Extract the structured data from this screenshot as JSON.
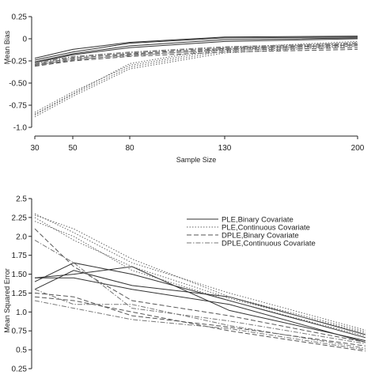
{
  "chart_data": [
    {
      "type": "line",
      "title": "",
      "xlabel": "Sample Size",
      "ylabel": "Mean Bias",
      "x": [
        30,
        50,
        80,
        130,
        200
      ],
      "x_tick_labels": [
        "30",
        "50",
        "80",
        "130",
        "200"
      ],
      "xlim": [
        30,
        200
      ],
      "ylim": [
        -1.0,
        0.25
      ],
      "y_ticks": [
        0.25,
        0.0,
        -0.25,
        -0.5,
        -0.75,
        -1.0
      ],
      "y_tick_labels": [
        "0.25",
        "0",
        "-0.25",
        "-0.50",
        "-0.75",
        "-1.0"
      ],
      "grid": false,
      "series": [
        {
          "style": "solid",
          "values": [
            -0.22,
            -0.12,
            -0.04,
            0.02,
            0.03
          ]
        },
        {
          "style": "solid",
          "values": [
            -0.24,
            -0.15,
            -0.05,
            0.01,
            0.02
          ]
        },
        {
          "style": "solid",
          "values": [
            -0.26,
            -0.17,
            -0.08,
            -0.01,
            0.01
          ]
        },
        {
          "style": "solid",
          "values": [
            -0.27,
            -0.18,
            -0.1,
            -0.03,
            0.0
          ]
        },
        {
          "style": "dotted",
          "values": [
            -0.83,
            -0.6,
            -0.3,
            -0.12,
            -0.04
          ]
        },
        {
          "style": "dotted",
          "values": [
            -0.86,
            -0.63,
            -0.32,
            -0.14,
            -0.06
          ]
        },
        {
          "style": "dotted",
          "values": [
            -0.88,
            -0.65,
            -0.34,
            -0.16,
            -0.08
          ]
        },
        {
          "style": "dotted",
          "values": [
            -0.85,
            -0.62,
            -0.28,
            -0.1,
            -0.03
          ]
        },
        {
          "style": "dashed",
          "values": [
            -0.3,
            -0.24,
            -0.18,
            -0.13,
            -0.1
          ]
        },
        {
          "style": "dashed",
          "values": [
            -0.31,
            -0.25,
            -0.2,
            -0.15,
            -0.12
          ]
        },
        {
          "style": "dashed",
          "values": [
            -0.29,
            -0.22,
            -0.17,
            -0.11,
            -0.07
          ]
        },
        {
          "style": "dashdot",
          "values": [
            -0.28,
            -0.21,
            -0.16,
            -0.1,
            -0.06
          ]
        },
        {
          "style": "dashdot",
          "values": [
            -0.3,
            -0.23,
            -0.19,
            -0.12,
            -0.08
          ]
        },
        {
          "style": "dashdot",
          "values": [
            -0.27,
            -0.2,
            -0.15,
            -0.09,
            -0.05
          ]
        }
      ]
    },
    {
      "type": "line",
      "title": "",
      "xlabel": "",
      "ylabel": "Mean Squared Error",
      "x": [
        30,
        50,
        80,
        130,
        200
      ],
      "xlim": [
        30,
        200
      ],
      "ylim": [
        0.25,
        2.5
      ],
      "y_ticks": [
        2.5,
        2.25,
        2.0,
        1.75,
        1.5,
        1.25,
        1.0,
        0.75,
        0.5,
        0.25
      ],
      "y_tick_labels": [
        "2.5",
        "2.25",
        "2.0",
        "1.75",
        "1.50",
        "1.25",
        "1.0",
        "0.75",
        "0.5",
        "0.25"
      ],
      "grid": false,
      "legend_position": "top-right",
      "legend": [
        {
          "label": "PLE,Binary Covariate",
          "style": "solid"
        },
        {
          "label": "PLE,Continuous Covariate",
          "style": "dotted"
        },
        {
          "label": "DPLE,Binary Covariate",
          "style": "dashed"
        },
        {
          "label": "DPLE,Continuous Covariate",
          "style": "dashdot"
        }
      ],
      "series": [
        {
          "style": "solid",
          "values": [
            1.45,
            1.5,
            1.6,
            1.02,
            0.62
          ]
        },
        {
          "style": "solid",
          "values": [
            1.4,
            1.65,
            1.5,
            1.15,
            0.66
          ]
        },
        {
          "style": "solid",
          "values": [
            1.3,
            1.55,
            1.35,
            1.2,
            0.7
          ]
        },
        {
          "style": "solid",
          "values": [
            1.45,
            1.45,
            1.3,
            1.1,
            0.6
          ]
        },
        {
          "style": "dotted",
          "values": [
            2.3,
            2.05,
            1.65,
            1.25,
            0.76
          ]
        },
        {
          "style": "dotted",
          "values": [
            2.25,
            1.95,
            1.6,
            1.18,
            0.72
          ]
        },
        {
          "style": "dotted",
          "values": [
            2.2,
            2.0,
            1.55,
            1.15,
            0.68
          ]
        },
        {
          "style": "dotted",
          "values": [
            2.28,
            2.1,
            1.7,
            1.2,
            0.74
          ]
        },
        {
          "style": "dashed",
          "values": [
            2.1,
            1.6,
            1.15,
            0.95,
            0.6
          ]
        },
        {
          "style": "dashed",
          "values": [
            1.25,
            1.2,
            0.95,
            0.8,
            0.55
          ]
        },
        {
          "style": "dashed",
          "values": [
            1.2,
            1.15,
            1.0,
            0.75,
            0.48
          ]
        },
        {
          "style": "dashdot",
          "values": [
            1.95,
            1.65,
            1.05,
            0.88,
            0.58
          ]
        },
        {
          "style": "dashdot",
          "values": [
            1.3,
            1.1,
            1.1,
            0.82,
            0.52
          ]
        },
        {
          "style": "dashdot",
          "values": [
            1.15,
            1.05,
            0.9,
            0.78,
            0.5
          ]
        }
      ]
    }
  ]
}
